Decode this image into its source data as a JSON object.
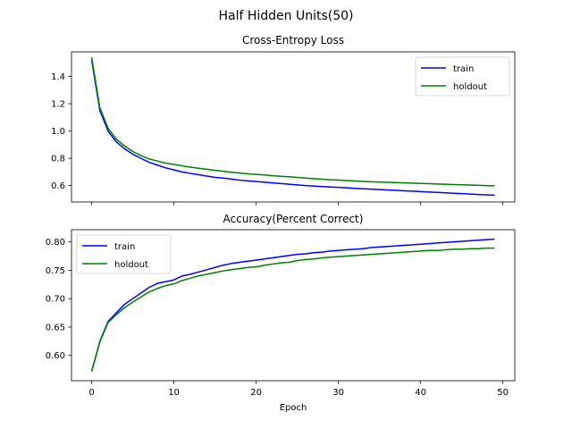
{
  "suptitle": "Half Hidden Units(50)",
  "chart_data": [
    {
      "type": "line",
      "title": "Cross-Entropy Loss",
      "xlabel": "",
      "ylabel": "",
      "xlim": [
        -2.45,
        51.45
      ],
      "ylim": [
        0.48,
        1.58
      ],
      "xticks": [
        0,
        10,
        20,
        30,
        40,
        50
      ],
      "xtick_labels_visible": false,
      "yticks": [
        0.6,
        0.8,
        1.0,
        1.2,
        1.4
      ],
      "ytick_labels": [
        "0.6",
        "0.8",
        "1.0",
        "1.2",
        "1.4"
      ],
      "legend": "top-right",
      "grid": false,
      "x": [
        0,
        1,
        2,
        3,
        4,
        5,
        6,
        7,
        8,
        9,
        10,
        11,
        12,
        13,
        14,
        15,
        16,
        17,
        18,
        19,
        20,
        21,
        22,
        23,
        24,
        25,
        26,
        27,
        28,
        29,
        30,
        31,
        32,
        33,
        34,
        35,
        36,
        37,
        38,
        39,
        40,
        41,
        42,
        43,
        44,
        45,
        46,
        47,
        48,
        49
      ],
      "series": [
        {
          "name": "train",
          "color": "#0000ff",
          "values": [
            1.52,
            1.15,
            1.0,
            0.92,
            0.87,
            0.83,
            0.8,
            0.77,
            0.75,
            0.73,
            0.715,
            0.7,
            0.69,
            0.68,
            0.67,
            0.66,
            0.655,
            0.648,
            0.64,
            0.635,
            0.63,
            0.625,
            0.62,
            0.615,
            0.61,
            0.605,
            0.6,
            0.597,
            0.593,
            0.59,
            0.587,
            0.584,
            0.58,
            0.577,
            0.574,
            0.571,
            0.568,
            0.565,
            0.562,
            0.559,
            0.556,
            0.553,
            0.55,
            0.547,
            0.544,
            0.541,
            0.538,
            0.535,
            0.532,
            0.53
          ]
        },
        {
          "name": "holdout",
          "color": "#008000",
          "values": [
            1.54,
            1.17,
            1.02,
            0.94,
            0.89,
            0.85,
            0.82,
            0.795,
            0.78,
            0.765,
            0.755,
            0.745,
            0.735,
            0.727,
            0.72,
            0.712,
            0.705,
            0.698,
            0.692,
            0.686,
            0.682,
            0.678,
            0.672,
            0.668,
            0.665,
            0.66,
            0.655,
            0.651,
            0.647,
            0.643,
            0.64,
            0.637,
            0.634,
            0.631,
            0.628,
            0.626,
            0.624,
            0.622,
            0.62,
            0.618,
            0.616,
            0.614,
            0.612,
            0.61,
            0.608,
            0.606,
            0.604,
            0.602,
            0.6,
            0.599
          ]
        }
      ]
    },
    {
      "type": "line",
      "title": "Accuracy(Percent Correct)",
      "xlabel": "Epoch",
      "ylabel": "",
      "xlim": [
        -2.45,
        51.45
      ],
      "ylim": [
        0.5555,
        0.8215
      ],
      "xticks": [
        0,
        10,
        20,
        30,
        40,
        50
      ],
      "xtick_labels": [
        "0",
        "10",
        "20",
        "30",
        "40",
        "50"
      ],
      "yticks": [
        0.6,
        0.65,
        0.7,
        0.75,
        0.8
      ],
      "ytick_labels": [
        "0.60",
        "0.65",
        "0.70",
        "0.75",
        "0.80"
      ],
      "legend": "top-left",
      "grid": false,
      "x": [
        0,
        1,
        2,
        3,
        4,
        5,
        6,
        7,
        8,
        9,
        10,
        11,
        12,
        13,
        14,
        15,
        16,
        17,
        18,
        19,
        20,
        21,
        22,
        23,
        24,
        25,
        26,
        27,
        28,
        29,
        30,
        31,
        32,
        33,
        34,
        35,
        36,
        37,
        38,
        39,
        40,
        41,
        42,
        43,
        44,
        45,
        46,
        47,
        48,
        49
      ],
      "series": [
        {
          "name": "train",
          "color": "#0000ff",
          "values": [
            0.572,
            0.625,
            0.66,
            0.675,
            0.69,
            0.7,
            0.71,
            0.72,
            0.727,
            0.73,
            0.733,
            0.74,
            0.743,
            0.747,
            0.751,
            0.755,
            0.759,
            0.762,
            0.764,
            0.766,
            0.768,
            0.77,
            0.772,
            0.774,
            0.776,
            0.778,
            0.779,
            0.781,
            0.782,
            0.784,
            0.785,
            0.786,
            0.787,
            0.788,
            0.79,
            0.791,
            0.792,
            0.793,
            0.794,
            0.795,
            0.796,
            0.797,
            0.798,
            0.799,
            0.8,
            0.801,
            0.802,
            0.803,
            0.804,
            0.805
          ]
        },
        {
          "name": "holdout",
          "color": "#008000",
          "values": [
            0.572,
            0.624,
            0.658,
            0.672,
            0.684,
            0.694,
            0.703,
            0.712,
            0.718,
            0.723,
            0.726,
            0.732,
            0.736,
            0.74,
            0.743,
            0.746,
            0.749,
            0.751,
            0.753,
            0.755,
            0.756,
            0.759,
            0.761,
            0.763,
            0.764,
            0.767,
            0.769,
            0.77,
            0.772,
            0.773,
            0.774,
            0.775,
            0.776,
            0.777,
            0.778,
            0.779,
            0.78,
            0.781,
            0.782,
            0.783,
            0.784,
            0.785,
            0.785,
            0.786,
            0.787,
            0.787,
            0.788,
            0.788,
            0.789,
            0.789
          ]
        }
      ]
    }
  ]
}
